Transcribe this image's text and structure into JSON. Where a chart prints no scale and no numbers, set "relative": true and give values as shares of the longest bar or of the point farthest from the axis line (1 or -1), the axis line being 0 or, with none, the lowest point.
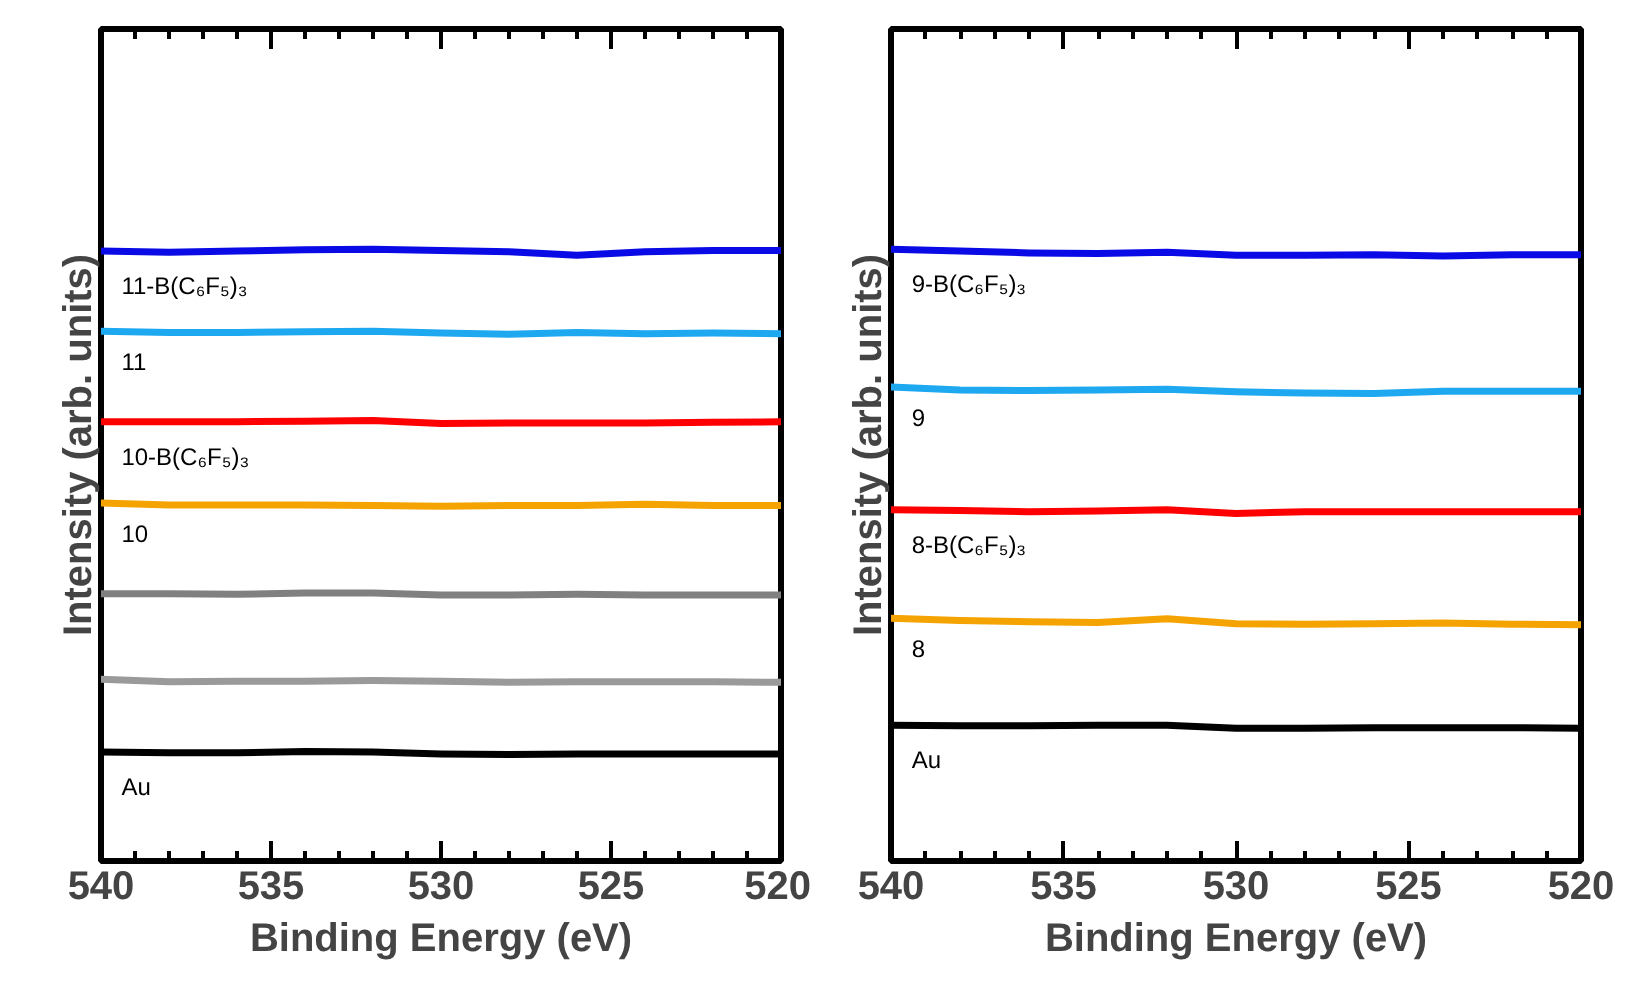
{
  "chart_data": [
    {
      "type": "line",
      "xlabel": "Binding Energy (eV)",
      "ylabel": "Intensity (arb. units)",
      "relative": true,
      "tick_labels": "x",
      "xlim": [
        540,
        520
      ],
      "xticks": [
        540,
        {
          "value": 539,
          "label": null
        },
        {
          "value": 538,
          "label": null
        },
        {
          "value": 537,
          "label": null
        },
        {
          "value": 536,
          "label": null
        },
        535,
        {
          "value": 534,
          "label": null
        },
        {
          "value": 533,
          "label": null
        },
        {
          "value": 532,
          "label": null
        },
        {
          "value": 531,
          "label": null
        },
        530,
        {
          "value": 529,
          "label": null
        },
        {
          "value": 528,
          "label": null
        },
        {
          "value": 527,
          "label": null
        },
        {
          "value": 526,
          "label": null
        },
        525,
        {
          "value": 524,
          "label": null
        },
        {
          "value": 523,
          "label": null
        },
        {
          "value": 522,
          "label": null
        },
        {
          "value": 521,
          "label": null
        },
        520
      ],
      "x": [
        540,
        538,
        536,
        534,
        532,
        530,
        528,
        526,
        524,
        522,
        520
      ],
      "series": [
        {
          "name": "11-B(C₆F₅)₃",
          "color": "#0a0ae6",
          "values": [
            0.997,
            0.995,
            0.997,
            0.999,
            1.0,
            0.998,
            0.996,
            0.99,
            0.996,
            0.998,
            0.998
          ]
        },
        {
          "name": "11",
          "color": "#1ea8ef",
          "values": [
            0.866,
            0.864,
            0.864,
            0.865,
            0.866,
            0.863,
            0.861,
            0.864,
            0.862,
            0.863,
            0.862
          ]
        },
        {
          "name": "10-B(C₆F₅)₃",
          "color": "#ff0000",
          "values": [
            0.718,
            0.718,
            0.718,
            0.719,
            0.72,
            0.715,
            0.716,
            0.716,
            0.716,
            0.717,
            0.718
          ]
        },
        {
          "name": "10",
          "color": "#f5a300",
          "values": [
            0.585,
            0.582,
            0.582,
            0.582,
            0.581,
            0.58,
            0.581,
            0.581,
            0.583,
            0.581,
            0.581
          ]
        },
        {
          "color": "#808080",
          "values": [
            0.437,
            0.437,
            0.436,
            0.438,
            0.438,
            0.435,
            0.435,
            0.436,
            0.435,
            0.435,
            0.435
          ]
        },
        {
          "color": "#9a9a9a",
          "values": [
            0.297,
            0.293,
            0.294,
            0.294,
            0.295,
            0.294,
            0.292,
            0.293,
            0.293,
            0.293,
            0.292
          ]
        },
        {
          "name": "Au",
          "color": "#000000",
          "values": [
            0.178,
            0.177,
            0.177,
            0.179,
            0.178,
            0.175,
            0.174,
            0.175,
            0.175,
            0.175,
            0.175
          ]
        }
      ]
    },
    {
      "type": "line",
      "xlabel": "Binding Energy (eV)",
      "ylabel": "Intensity (arb. units)",
      "relative": true,
      "tick_labels": "x",
      "xlim": [
        540,
        520
      ],
      "xticks": [
        540,
        {
          "value": 539,
          "label": null
        },
        {
          "value": 538,
          "label": null
        },
        {
          "value": 537,
          "label": null
        },
        {
          "value": 536,
          "label": null
        },
        535,
        {
          "value": 534,
          "label": null
        },
        {
          "value": 533,
          "label": null
        },
        {
          "value": 532,
          "label": null
        },
        {
          "value": 531,
          "label": null
        },
        530,
        {
          "value": 529,
          "label": null
        },
        {
          "value": 528,
          "label": null
        },
        {
          "value": 527,
          "label": null
        },
        {
          "value": 526,
          "label": null
        },
        525,
        {
          "value": 524,
          "label": null
        },
        {
          "value": 523,
          "label": null
        },
        {
          "value": 522,
          "label": null
        },
        {
          "value": 521,
          "label": null
        },
        520
      ],
      "x": [
        540,
        538,
        536,
        534,
        532,
        530,
        528,
        526,
        524,
        522,
        520
      ],
      "series": [
        {
          "name": "9-B(C₆F₅)₃",
          "color": "#0a0ae6",
          "values": [
            1.0,
            0.997,
            0.994,
            0.993,
            0.995,
            0.99,
            0.99,
            0.991,
            0.989,
            0.991,
            0.991
          ]
        },
        {
          "name": "9",
          "color": "#1ea8ef",
          "values": [
            0.775,
            0.77,
            0.769,
            0.77,
            0.771,
            0.767,
            0.765,
            0.764,
            0.768,
            0.768,
            0.768
          ]
        },
        {
          "name": "8-B(C₆F₅)₃",
          "color": "#ff0000",
          "values": [
            0.574,
            0.573,
            0.571,
            0.572,
            0.574,
            0.568,
            0.571,
            0.571,
            0.571,
            0.571,
            0.571
          ]
        },
        {
          "name": "8",
          "color": "#f5a300",
          "values": [
            0.397,
            0.393,
            0.391,
            0.39,
            0.396,
            0.388,
            0.387,
            0.388,
            0.389,
            0.387,
            0.386
          ]
        },
        {
          "name": "Au",
          "color": "#000000",
          "values": [
            0.222,
            0.221,
            0.221,
            0.222,
            0.222,
            0.217,
            0.217,
            0.218,
            0.218,
            0.218,
            0.217
          ]
        }
      ]
    }
  ]
}
